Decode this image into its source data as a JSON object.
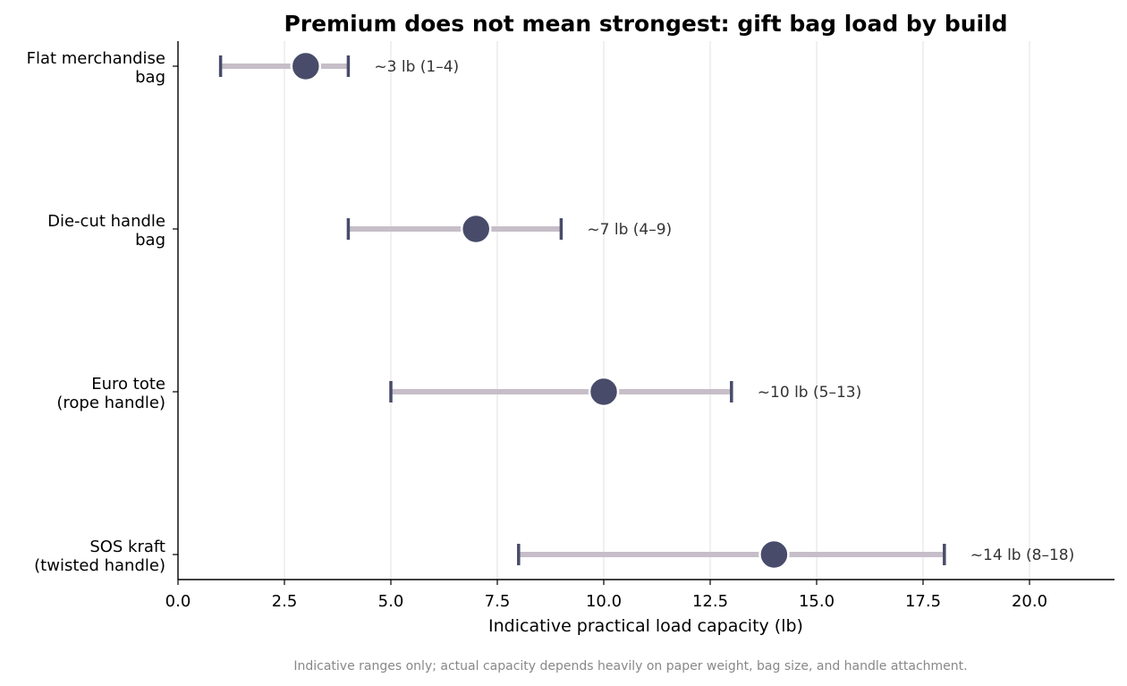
{
  "chart_data": {
    "type": "range-dot",
    "title": "Premium does not mean strongest: gift bag load by build",
    "xlabel": "Indicative practical load capacity (lb)",
    "xlim": [
      0,
      22
    ],
    "xticks": [
      0.0,
      2.5,
      5.0,
      7.5,
      10.0,
      12.5,
      15.0,
      17.5,
      20.0
    ],
    "xtick_labels": [
      "0.0",
      "2.5",
      "5.0",
      "7.5",
      "10.0",
      "12.5",
      "15.0",
      "17.5",
      "20.0"
    ],
    "grid": "vertical",
    "categories": [
      {
        "label_lines": [
          "Flat merchandise",
          "bag"
        ],
        "low": 1,
        "mid": 3,
        "high": 4,
        "annotation": "~3 lb  (1–4)"
      },
      {
        "label_lines": [
          "Die-cut handle",
          "bag"
        ],
        "low": 4,
        "mid": 7,
        "high": 9,
        "annotation": "~7 lb  (4–9)"
      },
      {
        "label_lines": [
          "Euro tote",
          "(rope handle)"
        ],
        "low": 5,
        "mid": 10,
        "high": 13,
        "annotation": "~10 lb  (5–13)"
      },
      {
        "label_lines": [
          "SOS kraft",
          "(twisted handle)"
        ],
        "low": 8,
        "mid": 14,
        "high": 18,
        "annotation": "~14 lb  (8–18)"
      }
    ],
    "footnote": "Indicative ranges only; actual capacity depends heavily on paper weight, bag size, and handle attachment.",
    "colors": {
      "range_bar": "#c6bec8",
      "end_cap": "#484c6a",
      "dot": "#484c6a",
      "dot_outline": "#ffffff",
      "grid": "#e6e6e6",
      "axis": "#000000"
    }
  }
}
